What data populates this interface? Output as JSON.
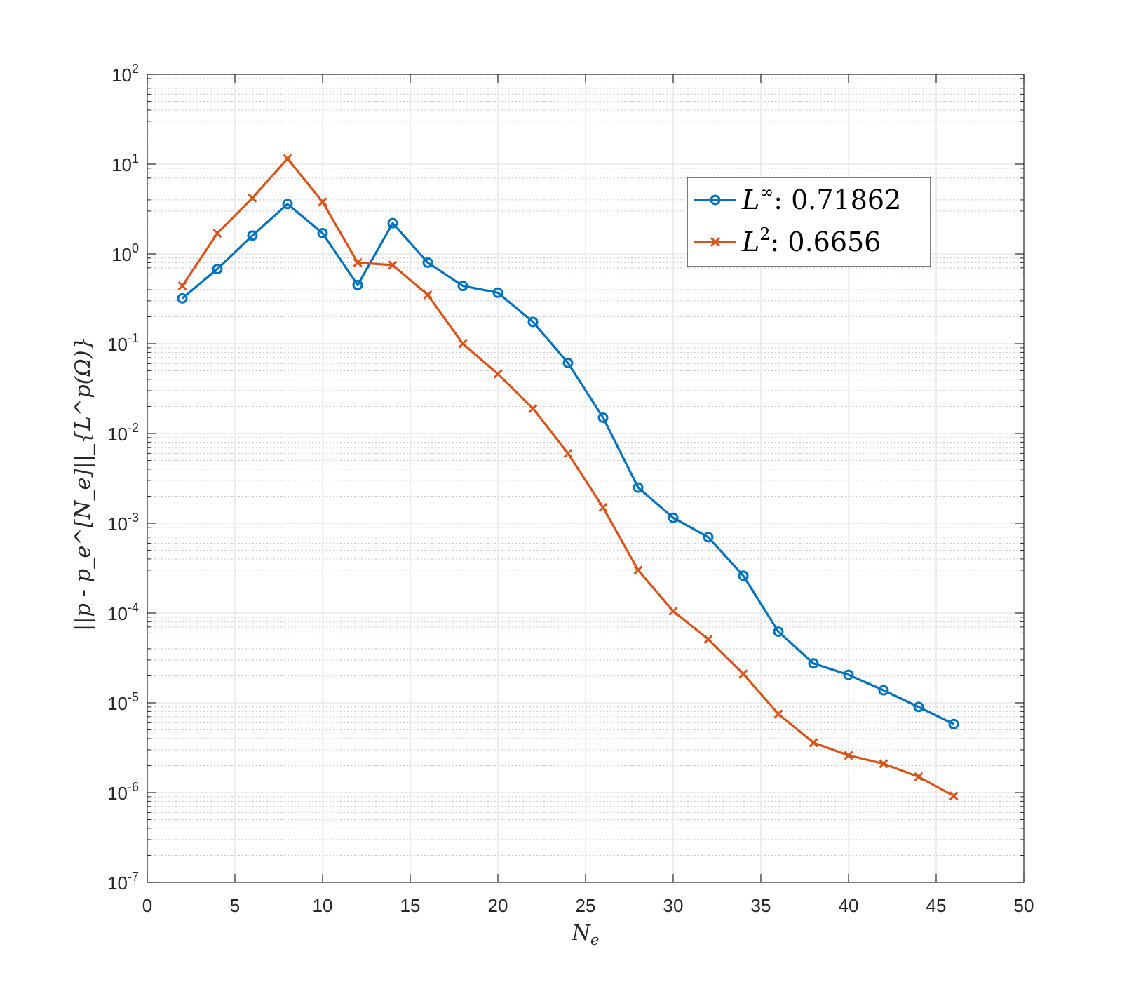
{
  "chart_data": {
    "type": "line",
    "yscale": "log",
    "xlabel": {
      "base": "N",
      "sub": "e"
    },
    "ylabel": "||p - p_e^[N_e]||_{L^p(Ω)}",
    "xlim": [
      0,
      50
    ],
    "ylim_exponent": [
      -7,
      2
    ],
    "xticks": [
      "0",
      "5",
      "10",
      "15",
      "20",
      "25",
      "30",
      "35",
      "40",
      "45",
      "50"
    ],
    "yticks": [
      "-7",
      "-6",
      "-5",
      "-4",
      "-3",
      "-2",
      "-1",
      "0",
      "1",
      "2"
    ],
    "ytick_base": "10",
    "grid": true,
    "minor_grid": true,
    "legend_position": "top-right",
    "x": [
      2,
      4,
      6,
      8,
      10,
      12,
      14,
      16,
      18,
      20,
      22,
      24,
      26,
      28,
      30,
      32,
      34,
      36,
      38,
      40,
      42,
      44,
      46
    ],
    "series": [
      {
        "name": "L^∞",
        "legend_base": "L",
        "legend_sup": "∞",
        "legend_value": ":  0.71862",
        "color": "#0072BD",
        "marker": "circle",
        "values": [
          0.32,
          0.68,
          1.6,
          3.6,
          1.7,
          0.45,
          2.2,
          0.8,
          0.44,
          0.37,
          0.175,
          0.061,
          0.015,
          0.0025,
          0.00115,
          0.0007,
          0.00026,
          6.2e-05,
          2.75e-05,
          2.05e-05,
          1.38e-05,
          9e-06,
          5.8e-06
        ]
      },
      {
        "name": "L^2",
        "legend_base": "L",
        "legend_sup": "2",
        "legend_value": ":  0.6656",
        "color": "#D95319",
        "marker": "x",
        "values": [
          0.44,
          1.7,
          4.2,
          11.5,
          3.8,
          0.8,
          0.75,
          0.35,
          0.1,
          0.046,
          0.019,
          0.006,
          0.0015,
          0.0003,
          0.000105,
          5.1e-05,
          2.1e-05,
          7.5e-06,
          3.6e-06,
          2.6e-06,
          2.1e-06,
          1.5e-06,
          9.2e-07
        ]
      }
    ]
  }
}
